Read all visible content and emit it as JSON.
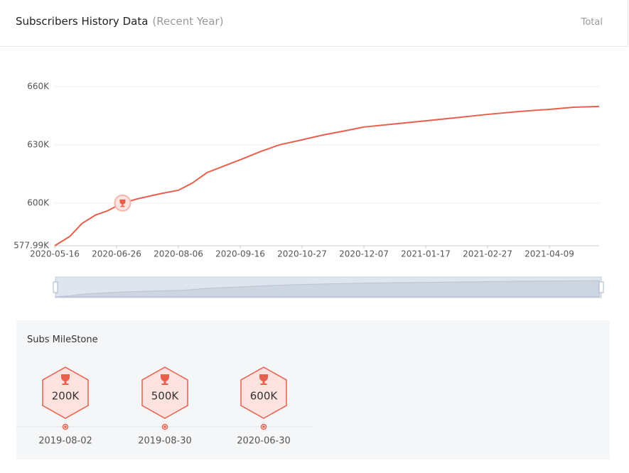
{
  "header": {
    "title": "Subscribers History Data",
    "subtitle": "(Recent Year)",
    "total": "Total"
  },
  "chart_data": {
    "type": "line",
    "x": [
      "2020-05-16",
      "2020-05-26",
      "2020-06-03",
      "2020-06-12",
      "2020-06-20",
      "2020-06-30",
      "2020-07-10",
      "2020-07-25",
      "2020-08-06",
      "2020-08-15",
      "2020-08-25",
      "2020-09-05",
      "2020-09-16",
      "2020-09-30",
      "2020-10-12",
      "2020-10-27",
      "2020-11-10",
      "2020-11-25",
      "2020-12-07",
      "2020-12-25",
      "2021-01-17",
      "2021-02-05",
      "2021-02-27",
      "2021-03-20",
      "2021-04-09",
      "2021-04-25",
      "2021-05-12"
    ],
    "series": [
      {
        "name": "Subscribers",
        "color": "#e8604c",
        "values": [
          577990,
          582800,
          589400,
          593800,
          596000,
          600000,
          602200,
          604800,
          606600,
          610200,
          615700,
          619000,
          622300,
          626700,
          630000,
          632600,
          635100,
          637300,
          639200,
          640600,
          642400,
          643900,
          645700,
          647200,
          648300,
          649400,
          649800
        ]
      }
    ],
    "xlim": [
      "2020-05-16",
      "2021-05-12"
    ],
    "xticks": [
      "2020-05-16",
      "2020-06-26",
      "2020-08-06",
      "2020-09-16",
      "2020-10-27",
      "2020-12-07",
      "2021-01-17",
      "2021-02-27",
      "2021-04-09"
    ],
    "ylim": [
      577990,
      660000
    ],
    "yticks": [
      {
        "value": 577990,
        "label": "577.99K"
      },
      {
        "value": 600000,
        "label": "600K"
      },
      {
        "value": 630000,
        "label": "630K"
      },
      {
        "value": 660000,
        "label": "660K"
      }
    ],
    "grid": true
  },
  "milestones": {
    "title": "Subs MileStone",
    "items": [
      {
        "label": "200K",
        "date": "2019-08-02"
      },
      {
        "label": "500K",
        "date": "2019-08-30"
      },
      {
        "label": "600K",
        "date": "2020-06-30"
      }
    ]
  }
}
